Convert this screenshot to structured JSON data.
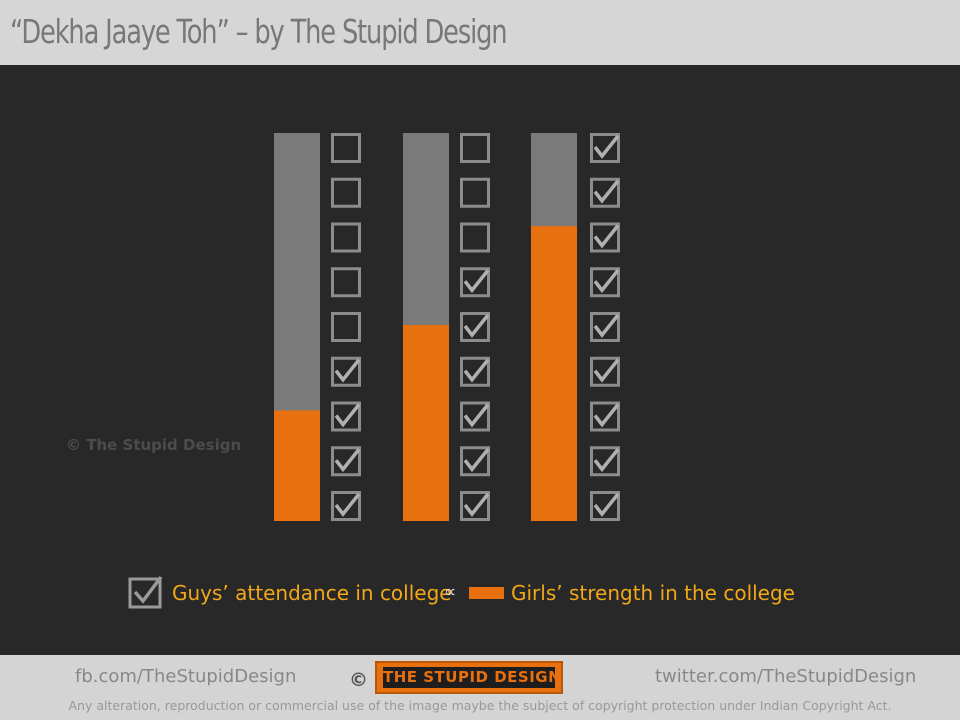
{
  "header": {
    "title": "“Dekha Jaaye Toh” – by The Stupid Design"
  },
  "watermark": "© The Stupid Design",
  "legend": {
    "checkbox_label": "Guys’ attendance in college",
    "symbol": "∝",
    "bar_label": "Girls’ strength in the college"
  },
  "chart_data": {
    "type": "bar",
    "title": "",
    "categories": [
      "",
      "",
      ""
    ],
    "series": [
      {
        "name": "Girls’ strength in the college",
        "values": [
          28.5,
          50.5,
          76
        ]
      },
      {
        "name": "Guys’ attendance in college",
        "checked": [
          4,
          6,
          9
        ],
        "total": [
          9,
          9,
          9
        ]
      }
    ],
    "ylim": [
      0,
      100
    ],
    "grid": false,
    "legend_position": "bottom",
    "colors": {
      "filled": "#e8700e",
      "empty": "#7a7a7a",
      "checkbox": "#8c8c8c",
      "tick": "#b0b0b0"
    }
  },
  "footer": {
    "left_link": "fb.com/TheStupidDesign",
    "copyright_symbol": "©",
    "logo": "THE STUPID DESIGN",
    "right_link": "twitter.com/TheStupidDesign",
    "disclaimer": "Any  alteration, reproduction or commercial use of the image maybe the subject of copyright protection under Indian Copyright Act."
  }
}
